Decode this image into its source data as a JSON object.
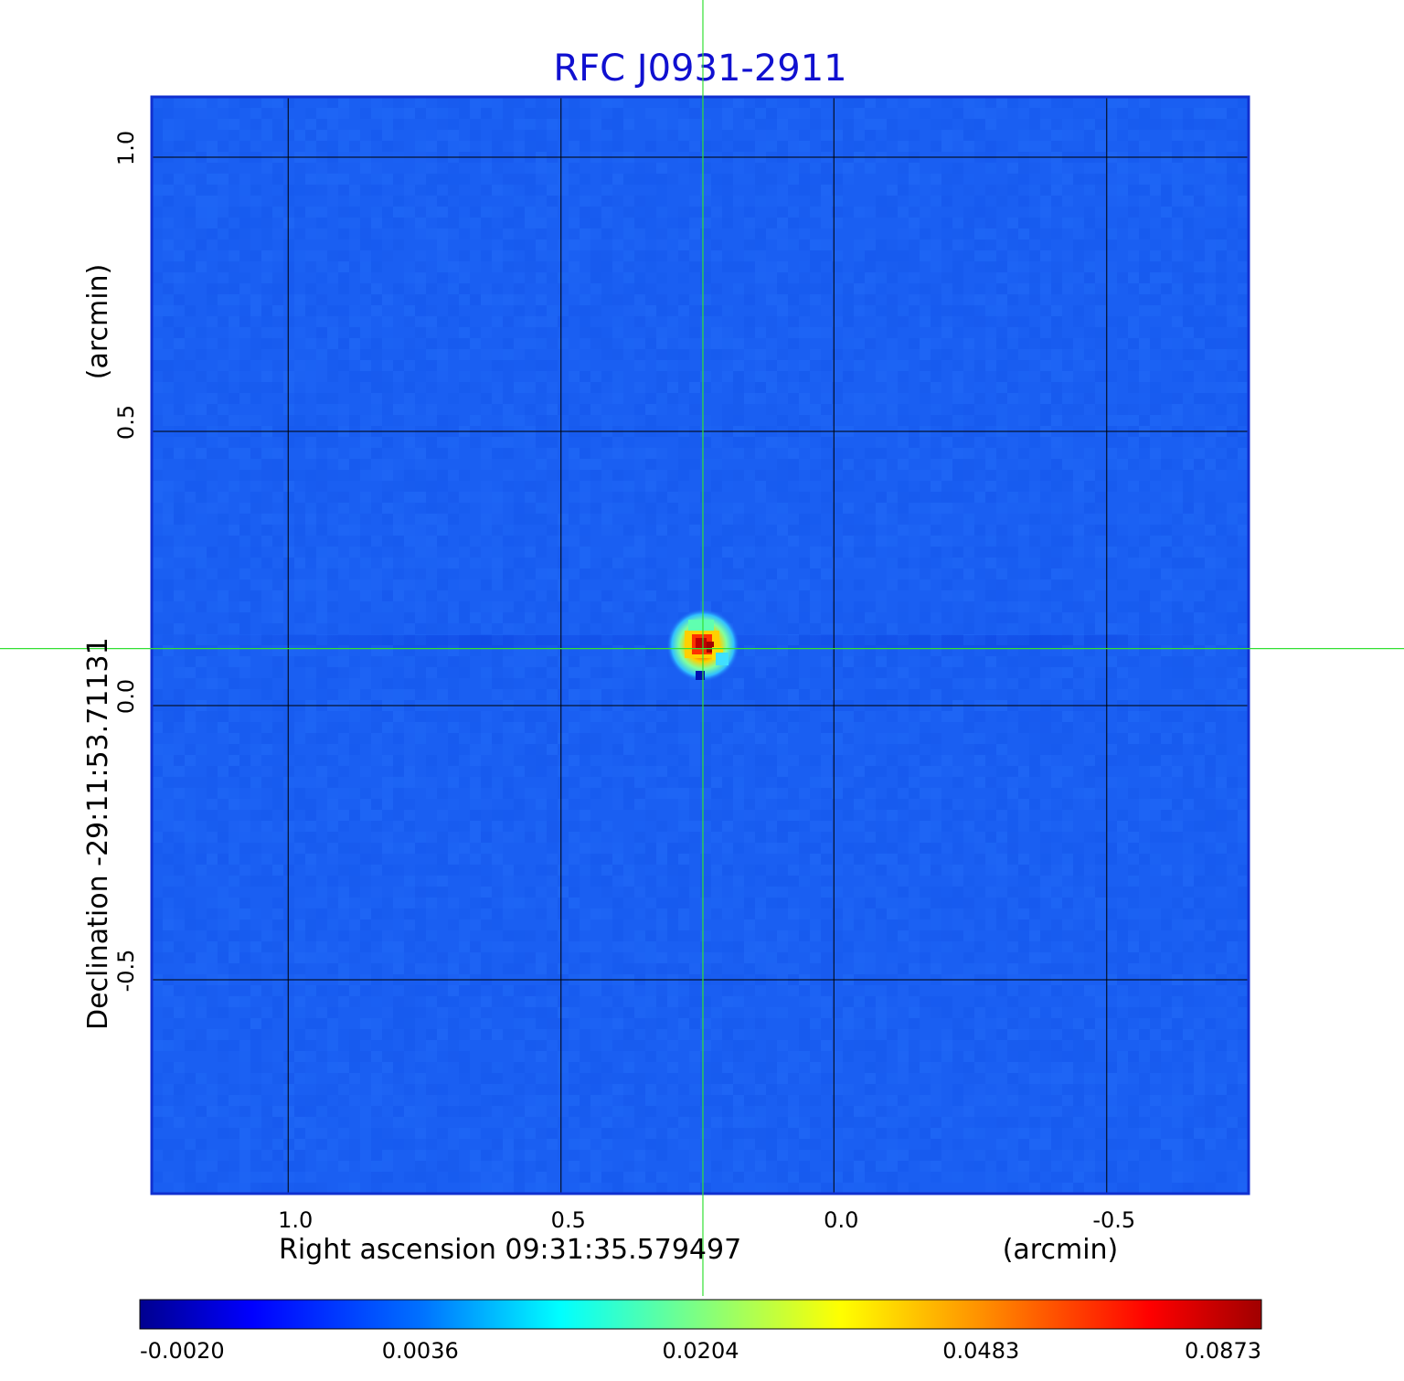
{
  "chart_data": {
    "type": "heatmap",
    "title": "RFC J0931-2911",
    "xlabel": "Right ascension  09:31:35.579497",
    "xunit": "(arcmin)",
    "ylabel": "Declination  -29:11:53.71131",
    "yunit": "(arcmin)",
    "x_ticks": [
      "1.0",
      "0.5",
      "0.0",
      "-0.5"
    ],
    "y_ticks": [
      "1.0",
      "0.5",
      "0.0",
      "-0.5"
    ],
    "x_tick_values": [
      1.0,
      0.5,
      0.0,
      -0.5
    ],
    "y_tick_values": [
      1.0,
      0.5,
      0.0,
      -0.5
    ],
    "xlim": [
      1.25,
      -0.76
    ],
    "ylim": [
      -0.89,
      1.11
    ],
    "grid": true,
    "crosshair": {
      "x": 0.24,
      "y": 0.104
    },
    "source_peak": {
      "x": 0.24,
      "y": 0.11,
      "value": 0.0873
    },
    "background_value": 0.0,
    "colorscale": "jet",
    "colorbar_ticks": [
      "-0.0020",
      "0.0036",
      "0.0204",
      "0.0483",
      "0.0873"
    ],
    "colorbar_values": [
      -0.002,
      0.0036,
      0.0204,
      0.0483,
      0.0873
    ],
    "colors": {
      "title": "#1010d0",
      "frame": "#1030d0",
      "background_map": "#1a5ff2",
      "crosshair": "#33e033",
      "grid": "#000000"
    }
  }
}
